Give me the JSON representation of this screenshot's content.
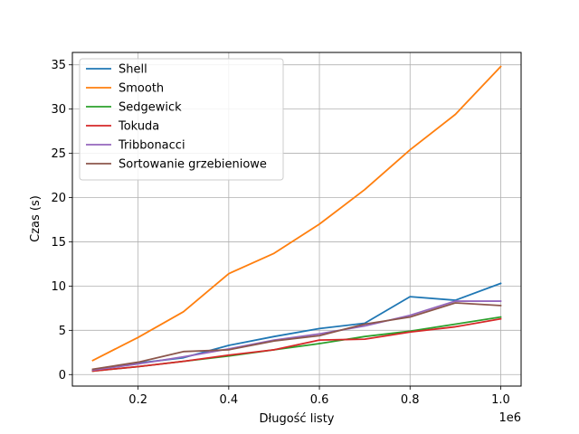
{
  "chart_data": {
    "type": "line",
    "xlabel": "Długość listy",
    "ylabel": "Czas (s)",
    "x_offset_label": "1e6",
    "xlim": [
      0.055,
      1.045
    ],
    "ylim": [
      -1.3,
      36.4
    ],
    "grid": true,
    "legend_position": "upper-left",
    "x_ticks": [
      0.2,
      0.4,
      0.6,
      0.8,
      1.0
    ],
    "x_tick_labels": [
      "0.2",
      "0.4",
      "0.6",
      "0.8",
      "1.0"
    ],
    "y_ticks": [
      0,
      5,
      10,
      15,
      20,
      25,
      30,
      35
    ],
    "y_tick_labels": [
      "0",
      "5",
      "10",
      "15",
      "20",
      "25",
      "30",
      "35"
    ],
    "x": [
      0.1,
      0.2,
      0.3,
      0.4,
      0.5,
      0.6,
      0.7,
      0.8,
      0.9,
      1.0
    ],
    "series": [
      {
        "name": "Shell",
        "color": "#1f77b4",
        "values": [
          0.5,
          1.3,
          1.9,
          3.3,
          4.3,
          5.2,
          5.8,
          8.8,
          8.4,
          10.3
        ]
      },
      {
        "name": "Smooth",
        "color": "#ff7f0e",
        "values": [
          1.6,
          4.2,
          7.1,
          11.4,
          13.7,
          17.0,
          20.9,
          25.4,
          29.4,
          34.8
        ]
      },
      {
        "name": "Sedgewick",
        "color": "#2ca02c",
        "values": [
          0.4,
          0.9,
          1.5,
          2.1,
          2.8,
          3.5,
          4.3,
          4.9,
          5.7,
          6.5
        ]
      },
      {
        "name": "Tokuda",
        "color": "#d62728",
        "values": [
          0.4,
          0.9,
          1.5,
          2.2,
          2.8,
          3.9,
          4.0,
          4.8,
          5.4,
          6.3
        ]
      },
      {
        "name": "Tribbonacci",
        "color": "#9467bd",
        "values": [
          0.5,
          1.2,
          2.0,
          2.9,
          3.9,
          4.6,
          5.5,
          6.7,
          8.3,
          8.3
        ]
      },
      {
        "name": "Sortowanie grzebieniowe",
        "color": "#8c564b",
        "values": [
          0.6,
          1.4,
          2.6,
          2.8,
          3.8,
          4.4,
          5.7,
          6.5,
          8.1,
          7.8
        ]
      }
    ]
  }
}
